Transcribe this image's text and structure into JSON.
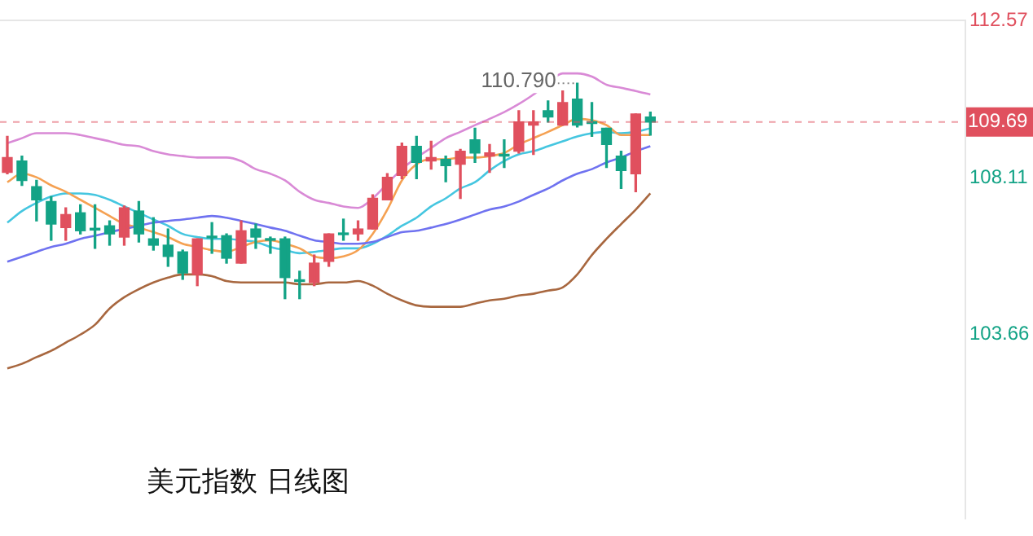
{
  "chart_data": {
    "type": "candlestick",
    "title": "美元指数 日线图",
    "categories": [
      null,
      null,
      null,
      null,
      null,
      null,
      null,
      null,
      null,
      null,
      null,
      null,
      null,
      null,
      null,
      null,
      null,
      null,
      null,
      null,
      null,
      null,
      null,
      null,
      null,
      null,
      null,
      null,
      null,
      null,
      null,
      null,
      null,
      null,
      null,
      null,
      null,
      null,
      null,
      null,
      null,
      null,
      null,
      null,
      null,
      null,
      null,
      null,
      null,
      null,
      null,
      null,
      null,
      null,
      null,
      null,
      null,
      null,
      null,
      null,
      null,
      null,
      null,
      null,
      null,
      null
    ],
    "ohlc": [
      [
        108.26,
        109.28,
        108.22,
        108.68
      ],
      [
        108.58,
        108.72,
        107.89,
        108.03
      ],
      [
        107.85,
        108.03,
        106.88,
        107.48
      ],
      [
        107.43,
        107.57,
        106.33,
        106.79
      ],
      [
        106.69,
        107.25,
        106.33,
        107.06
      ],
      [
        107.11,
        107.34,
        106.51,
        106.6
      ],
      [
        106.67,
        107.34,
        106.1,
        106.62
      ],
      [
        106.74,
        106.88,
        106.19,
        106.51
      ],
      [
        106.42,
        107.3,
        106.19,
        107.25
      ],
      [
        107.16,
        107.43,
        106.28,
        106.51
      ],
      [
        106.37,
        106.97,
        106.05,
        106.19
      ],
      [
        106.19,
        106.65,
        105.59,
        105.87
      ],
      [
        106.0,
        106.05,
        105.22,
        105.4
      ],
      [
        105.36,
        106.37,
        105.04,
        106.37
      ],
      [
        106.44,
        106.83,
        105.96,
        106.4
      ],
      [
        106.46,
        106.51,
        105.68,
        105.82
      ],
      [
        105.68,
        106.88,
        105.68,
        106.6
      ],
      [
        106.65,
        106.79,
        106.1,
        106.42
      ],
      [
        106.35,
        106.42,
        105.96,
        106.33
      ],
      [
        106.37,
        106.42,
        104.67,
        105.27
      ],
      [
        105.2,
        105.45,
        104.67,
        105.16
      ],
      [
        105.13,
        105.91,
        105.04,
        105.68
      ],
      [
        105.73,
        106.51,
        105.59,
        106.51
      ],
      [
        106.53,
        106.93,
        106.33,
        106.49
      ],
      [
        106.51,
        106.88,
        106.33,
        106.65
      ],
      [
        106.65,
        107.62,
        106.65,
        107.52
      ],
      [
        107.48,
        108.22,
        107.48,
        108.12
      ],
      [
        108.17,
        109.09,
        108.08,
        109.0
      ],
      [
        109.0,
        109.28,
        108.08,
        108.54
      ],
      [
        108.58,
        109.14,
        108.35,
        108.68
      ],
      [
        108.63,
        108.72,
        107.99,
        108.45
      ],
      [
        108.49,
        108.91,
        107.52,
        108.86
      ],
      [
        109.18,
        109.51,
        108.54,
        108.81
      ],
      [
        108.72,
        109.05,
        108.26,
        108.81
      ],
      [
        108.77,
        109.18,
        108.4,
        108.72
      ],
      [
        108.86,
        110.01,
        108.81,
        109.69
      ],
      [
        109.6,
        110.01,
        108.77,
        109.69
      ],
      [
        110.01,
        110.29,
        109.69,
        109.83
      ],
      [
        109.6,
        110.57,
        109.6,
        110.24
      ],
      [
        110.34,
        110.79,
        109.55,
        109.6
      ],
      [
        109.69,
        110.24,
        109.28,
        109.65
      ],
      [
        109.51,
        109.51,
        108.4,
        109.05
      ],
      [
        108.72,
        108.86,
        107.8,
        108.31
      ],
      [
        108.22,
        109.92,
        107.71,
        109.92
      ],
      [
        109.83,
        109.97,
        109.32,
        109.69
      ],
      null,
      null,
      null,
      null,
      null,
      null,
      null,
      null,
      null,
      null,
      null,
      null,
      null,
      null,
      null,
      null,
      null,
      null,
      null,
      null,
      null
    ],
    "colors": [
      "#e0505e",
      "#13a386",
      "#13a386",
      "#13a386",
      "#e0505e",
      "#13a386",
      "#13a386",
      "#13a386",
      "#e0505e",
      "#13a386",
      "#13a386",
      "#13a386",
      "#13a386",
      "#e0505e",
      "#13a386",
      "#13a386",
      "#e0505e",
      "#13a386",
      "#13a386",
      "#13a386",
      "#13a386",
      "#e0505e",
      "#e0505e",
      "#13a386",
      "#e0505e",
      "#e0505e",
      "#e0505e",
      "#e0505e",
      "#13a386",
      "#e0505e",
      "#13a386",
      "#e0505e",
      "#13a386",
      "#e0505e",
      "#13a386",
      "#e0505e",
      "#e0505e",
      "#13a386",
      "#e0505e",
      "#13a386",
      "#13a386",
      "#13a386",
      "#13a386",
      "#e0505e",
      "#13a386",
      null,
      null,
      null,
      null,
      null,
      null,
      null,
      null,
      null,
      null,
      null,
      null,
      null,
      null,
      null,
      null,
      null,
      null,
      null,
      null,
      null
    ],
    "series": [
      {
        "type": "line",
        "color": "#d98ad6",
        "values": [
          109.09,
          109.23,
          109.37,
          109.37,
          109.37,
          109.32,
          109.23,
          109.14,
          109.04,
          109.0,
          108.86,
          108.77,
          108.72,
          108.68,
          108.68,
          108.68,
          108.58,
          108.35,
          108.22,
          108.03,
          107.71,
          107.48,
          107.39,
          107.29,
          107.25,
          107.52,
          107.94,
          108.35,
          108.68,
          108.95,
          109.23,
          109.41,
          109.6,
          109.78,
          109.97,
          110.2,
          110.47,
          110.8,
          111.07,
          111.07,
          110.98,
          110.75,
          110.66,
          110.57,
          110.47,
          null,
          null,
          null,
          null,
          null,
          null,
          null,
          null,
          null,
          null,
          null,
          null,
          null,
          null,
          null,
          null,
          null,
          null,
          null,
          null,
          null
        ]
      },
      {
        "type": "line",
        "color": "#6f72f0",
        "values": [
          105.72,
          105.86,
          106.0,
          106.14,
          106.23,
          106.37,
          106.46,
          106.56,
          106.65,
          106.74,
          106.83,
          106.88,
          106.92,
          106.97,
          107.02,
          106.97,
          106.88,
          106.79,
          106.69,
          106.6,
          106.46,
          106.33,
          106.28,
          106.23,
          106.23,
          106.28,
          106.42,
          106.56,
          106.6,
          106.69,
          106.79,
          106.92,
          107.06,
          107.2,
          107.29,
          107.43,
          107.62,
          107.8,
          108.03,
          108.22,
          108.35,
          108.54,
          108.68,
          108.86,
          109.0,
          null,
          null,
          null,
          null,
          null,
          null,
          null,
          null,
          null,
          null,
          null,
          null,
          null,
          null,
          null,
          null,
          null,
          null,
          null,
          null,
          null
        ]
      },
      {
        "type": "line",
        "color": "#a8673f",
        "values": [
          102.69,
          102.82,
          103.01,
          103.19,
          103.42,
          103.65,
          103.93,
          104.39,
          104.71,
          104.94,
          105.13,
          105.27,
          105.36,
          105.36,
          105.31,
          105.17,
          105.13,
          105.13,
          105.13,
          105.13,
          105.08,
          105.08,
          105.13,
          105.13,
          105.17,
          105.04,
          104.81,
          104.62,
          104.48,
          104.44,
          104.44,
          104.44,
          104.53,
          104.62,
          104.67,
          104.76,
          104.81,
          104.9,
          104.99,
          105.36,
          105.91,
          106.37,
          106.79,
          107.2,
          107.66,
          null,
          null,
          null,
          null,
          null,
          null,
          null,
          null,
          null,
          null,
          null,
          null,
          null,
          null,
          null,
          null,
          null,
          null,
          null,
          null,
          null
        ]
      },
      {
        "type": "line",
        "color": "#f5a152",
        "values": [
          107.98,
          108.22,
          108.12,
          107.89,
          107.71,
          107.48,
          107.25,
          107.02,
          106.79,
          106.69,
          106.56,
          106.42,
          106.23,
          106.14,
          106.05,
          106.0,
          106.14,
          106.28,
          106.33,
          106.23,
          106.1,
          105.87,
          105.82,
          105.87,
          106.05,
          106.51,
          107.2,
          108.03,
          108.49,
          108.63,
          108.63,
          108.68,
          108.68,
          108.72,
          108.81,
          109.05,
          109.23,
          109.41,
          109.6,
          109.78,
          109.74,
          109.6,
          109.32,
          109.32,
          109.32,
          null,
          null,
          null,
          null,
          null,
          null,
          null,
          null,
          null,
          null,
          null,
          null,
          null,
          null,
          null,
          null,
          null,
          null,
          null,
          null,
          null
        ]
      },
      {
        "type": "line",
        "color": "#45c6e0",
        "values": [
          106.83,
          107.16,
          107.39,
          107.57,
          107.66,
          107.66,
          107.62,
          107.48,
          107.29,
          107.11,
          106.92,
          106.74,
          106.51,
          106.42,
          106.37,
          106.37,
          106.33,
          106.28,
          106.14,
          106.05,
          105.96,
          106.0,
          106.05,
          106.1,
          106.1,
          106.23,
          106.46,
          106.74,
          106.97,
          107.29,
          107.52,
          107.8,
          107.98,
          108.31,
          108.58,
          108.77,
          108.86,
          109.0,
          109.14,
          109.28,
          109.37,
          109.41,
          109.37,
          109.41,
          109.51,
          null,
          null,
          null,
          null,
          null,
          null,
          null,
          null,
          null,
          null,
          null,
          null,
          null,
          null,
          null,
          null,
          null,
          null,
          null,
          null,
          null
        ]
      }
    ],
    "ylim": [
      98.4,
      112.6
    ],
    "yticks": [
      112.57,
      108.11,
      103.66
    ],
    "ref_lines": [
      {
        "axis": "y",
        "value": 109.69,
        "label": "109.69",
        "color": "#e0505e",
        "line_style": "dashed"
      }
    ],
    "annotations": [
      "110.790"
    ],
    "grid": false,
    "legend": false,
    "tick_labels": "y"
  }
}
